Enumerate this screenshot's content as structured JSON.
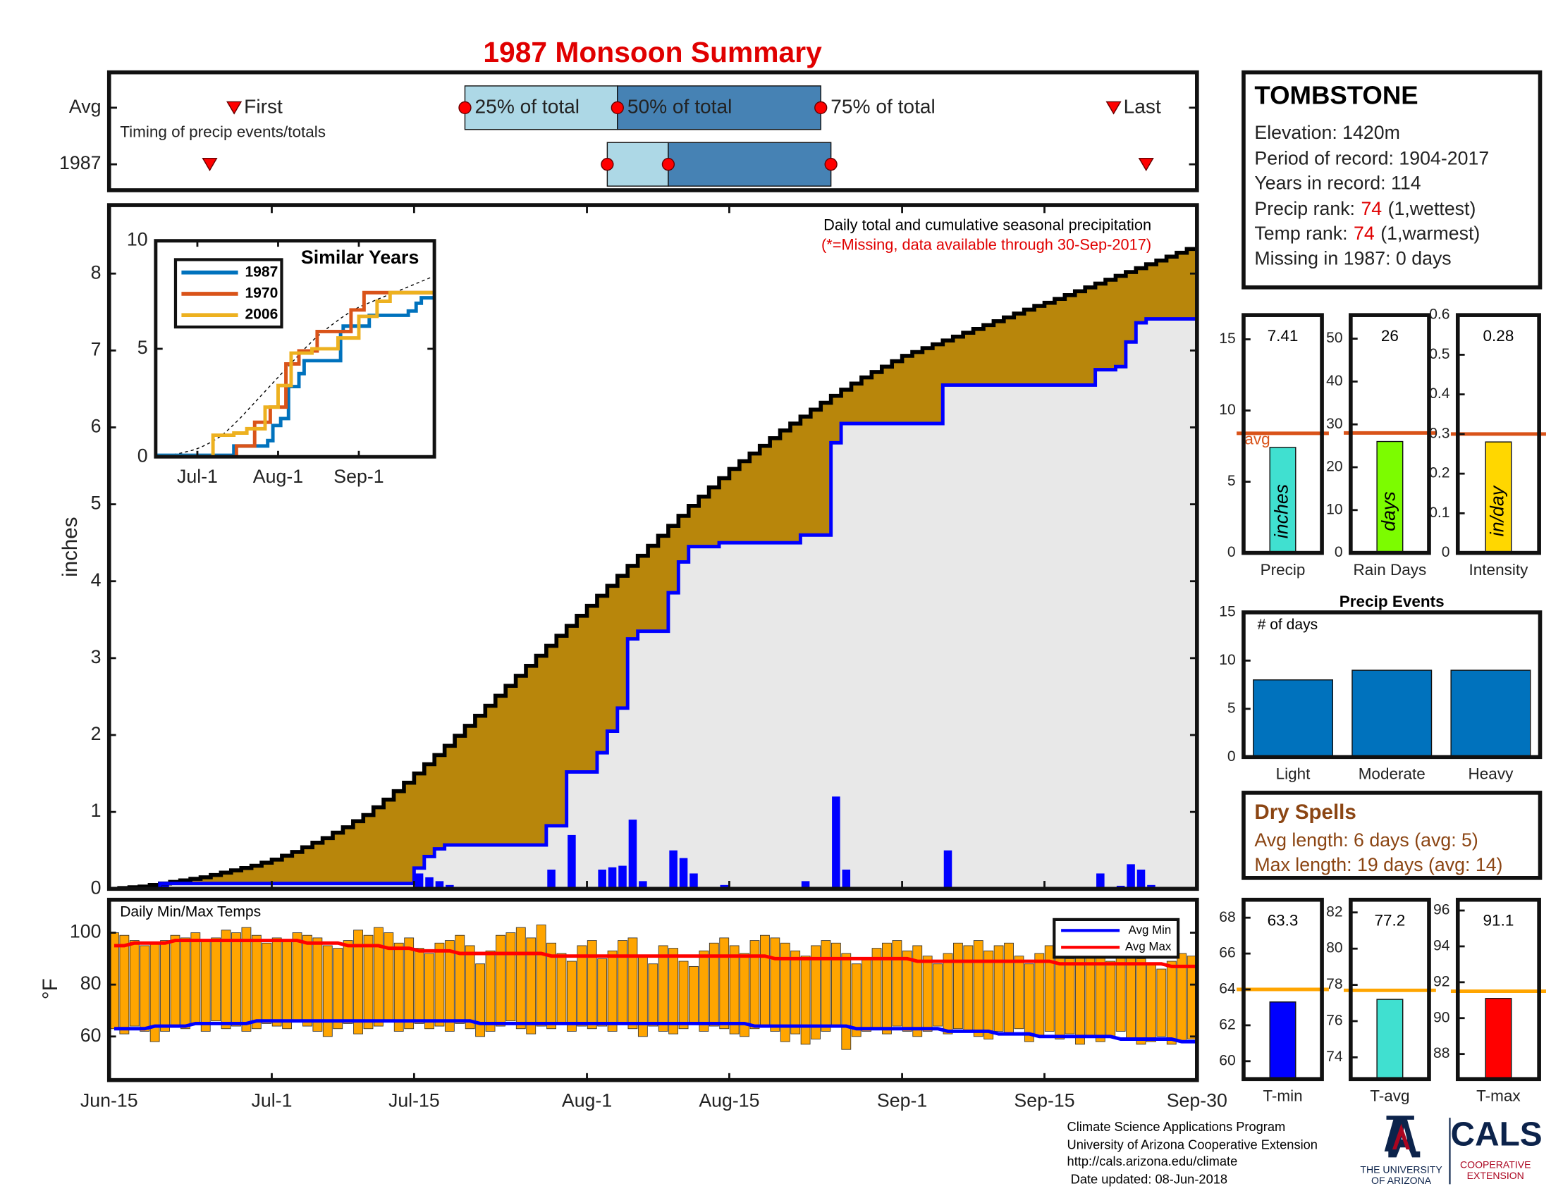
{
  "title": "1987 Monsoon Summary",
  "station": {
    "name": "TOMBSTONE",
    "elevation": "Elevation: 1420m",
    "period": "Period of record: 1904-2017",
    "years": "Years in record: 114",
    "precip_rank": {
      "label": "Precip rank:",
      "value": "74",
      "note": "(1,wettest)"
    },
    "temp_rank": {
      "label": "Temp rank:",
      "value": "74",
      "note": "(1,warmest)"
    },
    "missing": "Missing in 1987: 0 days"
  },
  "dry_spells": {
    "title": "Dry Spells",
    "avg": "Avg length: 6 days (avg: 5)",
    "max": "Max length: 19 days (avg: 14)"
  },
  "footer": {
    "lines": [
      "Climate Science Applications Program",
      "University of Arizona Cooperative Extension",
      "http://cals.arizona.edu/climate",
      " Date updated: 08-Jun-2018"
    ],
    "university": [
      "THE UNIVERSITY",
      "OF ARIZONA"
    ],
    "cals": "CALS",
    "cals_sub": [
      "COOPERATIVE",
      "EXTENSION"
    ]
  },
  "chart_data": [
    {
      "type": "timing",
      "rows": [
        "Avg",
        "1987"
      ],
      "xlim": [
        0,
        107
      ],
      "first": [
        12.3,
        9.9
      ],
      "p25": [
        35,
        49
      ],
      "p50": [
        50,
        55
      ],
      "p75": [
        70,
        71
      ],
      "last": [
        98.8,
        102
      ],
      "labels": {
        "first": "First",
        "p25": "25% of total",
        "p50": "50% of total",
        "p75": "75% of total",
        "last": "Last"
      },
      "note": "Timing of precip events/totals",
      "colors": {
        "lower": "#add8e6",
        "upper": "#4682b4",
        "marker": "#ff0000"
      }
    },
    {
      "type": "precip",
      "title": "Daily total and cumulative seasonal precipitation",
      "subtitle": "(*=Missing, data available through 30-Sep-2017)",
      "ylabel": "inches",
      "x": [
        0,
        1,
        2,
        3,
        4,
        5,
        6,
        7,
        8,
        9,
        10,
        11,
        12,
        13,
        14,
        15,
        16,
        17,
        18,
        19,
        20,
        21,
        22,
        23,
        24,
        25,
        26,
        27,
        28,
        29,
        30,
        31,
        32,
        33,
        34,
        35,
        36,
        37,
        38,
        39,
        40,
        41,
        42,
        43,
        44,
        45,
        46,
        47,
        48,
        49,
        50,
        51,
        52,
        53,
        54,
        55,
        56,
        57,
        58,
        59,
        60,
        61,
        62,
        63,
        64,
        65,
        66,
        67,
        68,
        69,
        70,
        71,
        72,
        73,
        74,
        75,
        76,
        77,
        78,
        79,
        80,
        81,
        82,
        83,
        84,
        85,
        86,
        87,
        88,
        89,
        90,
        91,
        92,
        93,
        94,
        95,
        96,
        97,
        98,
        99,
        100,
        101,
        102,
        103,
        104,
        105,
        106,
        107
      ],
      "xlim": [
        0,
        107
      ],
      "ylim": [
        0,
        8.89
      ],
      "yticks": [
        0,
        1,
        2,
        3,
        4,
        5,
        6,
        7,
        8
      ],
      "avg_cumulative": [
        0,
        0.01,
        0.02,
        0.03,
        0.05,
        0.07,
        0.09,
        0.11,
        0.13,
        0.15,
        0.18,
        0.21,
        0.24,
        0.27,
        0.3,
        0.34,
        0.38,
        0.43,
        0.48,
        0.54,
        0.6,
        0.66,
        0.73,
        0.8,
        0.88,
        0.96,
        1.06,
        1.16,
        1.27,
        1.38,
        1.5,
        1.62,
        1.74,
        1.86,
        1.99,
        2.12,
        2.25,
        2.38,
        2.51,
        2.64,
        2.77,
        2.9,
        3.03,
        3.16,
        3.29,
        3.42,
        3.55,
        3.68,
        3.81,
        3.94,
        4.07,
        4.2,
        4.33,
        4.46,
        4.59,
        4.72,
        4.85,
        4.98,
        5.1,
        5.22,
        5.34,
        5.46,
        5.56,
        5.66,
        5.76,
        5.86,
        5.96,
        6.05,
        6.14,
        6.23,
        6.32,
        6.41,
        6.49,
        6.57,
        6.65,
        6.72,
        6.79,
        6.86,
        6.93,
        6.98,
        7.03,
        7.08,
        7.13,
        7.18,
        7.23,
        7.28,
        7.33,
        7.38,
        7.43,
        7.48,
        7.53,
        7.58,
        7.62,
        7.67,
        7.72,
        7.77,
        7.82,
        7.87,
        7.92,
        7.97,
        8.02,
        8.07,
        8.12,
        8.17,
        8.22,
        8.27,
        8.32,
        8.37
      ],
      "daily": [
        0,
        0,
        0,
        0,
        0,
        0.07,
        0,
        0,
        0,
        0,
        0,
        0,
        0,
        0,
        0,
        0,
        0,
        0,
        0,
        0,
        0,
        0,
        0,
        0,
        0,
        0,
        0,
        0,
        0,
        0,
        0.2,
        0.15,
        0.1,
        0.05,
        0,
        0,
        0,
        0,
        0,
        0,
        0,
        0,
        0,
        0.25,
        0,
        0.7,
        0,
        0,
        0.25,
        0.28,
        0.3,
        0.9,
        0.1,
        0,
        0,
        0.5,
        0.4,
        0.2,
        0,
        0,
        0.05,
        0,
        0,
        0,
        0,
        0,
        0,
        0,
        0.1,
        0,
        0,
        1.2,
        0.25,
        0,
        0,
        0,
        0,
        0,
        0,
        0,
        0,
        0,
        0.5,
        0,
        0,
        0,
        0,
        0,
        0,
        0,
        0,
        0,
        0,
        0,
        0,
        0,
        0,
        0.2,
        0,
        0.04,
        0.32,
        0.25,
        0.05,
        0,
        0,
        0,
        0,
        0
      ],
      "avg_color": "#000000",
      "avg_fill": "#b8860b",
      "year_color": "#0000ff",
      "year_fill": "#e8e8e8"
    },
    {
      "type": "line",
      "title": "Similar Years",
      "xlim": [
        0,
        107
      ],
      "ylim": [
        0,
        10
      ],
      "yticks": [
        0,
        5,
        10
      ],
      "xticks": [
        {
          "value": 16,
          "label": "Jul-1"
        },
        {
          "value": 47,
          "label": "Aug-1"
        },
        {
          "value": 78,
          "label": "Sep-1"
        }
      ],
      "series": [
        {
          "name": "1987",
          "color": "#0072bd",
          "x": [
            0,
            30,
            43,
            45,
            48,
            51,
            55,
            57,
            71,
            72,
            82,
            97,
            100,
            102,
            107
          ],
          "values": [
            0.07,
            0.5,
            0.75,
            1.45,
            1.77,
            3.25,
            3.85,
            4.45,
            5.8,
            6.05,
            6.55,
            6.75,
            7.11,
            7.36,
            7.41
          ]
        },
        {
          "name": "1970",
          "color": "#d95319",
          "x": [
            0,
            25,
            31,
            38,
            44,
            50,
            55,
            62,
            70,
            75,
            80,
            88,
            107
          ],
          "values": [
            0,
            0,
            0.5,
            1.6,
            2.3,
            4.3,
            4.9,
            5.8,
            5.8,
            6.8,
            7.6,
            7.6,
            7.6
          ]
        },
        {
          "name": "2006",
          "color": "#edb120",
          "x": [
            0,
            20,
            22,
            30,
            35,
            42,
            47,
            52,
            60,
            70,
            78,
            85,
            90,
            107
          ],
          "values": [
            0,
            0,
            1,
            1.1,
            1.3,
            2.3,
            3.3,
            4.8,
            5.0,
            5.5,
            6.5,
            7.2,
            7.6,
            7.6
          ]
        }
      ],
      "legend": "upper left"
    },
    {
      "type": "range",
      "title": "Daily Min/Max Temps",
      "ylabel": "°F",
      "ylim": [
        43.2,
        112.7
      ],
      "yticks": [
        60,
        80,
        100
      ],
      "xlim": [
        0,
        107
      ],
      "xticks": [
        {
          "value": 0,
          "label": "Jun-15"
        },
        {
          "value": 16,
          "label": "Jul-1"
        },
        {
          "value": 30,
          "label": "Jul-15"
        },
        {
          "value": 47,
          "label": "Aug-1"
        },
        {
          "value": 61,
          "label": "Aug-15"
        },
        {
          "value": 78,
          "label": "Sep-1"
        },
        {
          "value": 92,
          "label": "Sep-15"
        },
        {
          "value": 107,
          "label": "Sep-30"
        }
      ],
      "max": [
        100,
        99,
        97,
        95,
        96,
        97,
        99,
        98,
        100,
        97,
        98,
        101,
        100,
        102,
        99,
        96,
        98,
        97,
        100,
        99,
        98,
        95,
        94,
        97,
        101,
        99,
        102,
        100,
        96,
        98,
        94,
        92,
        96,
        97,
        99,
        95,
        88,
        93,
        99,
        100,
        102,
        98,
        103,
        96,
        92,
        89,
        95,
        97,
        90,
        93,
        97,
        98,
        91,
        88,
        95,
        94,
        89,
        87,
        93,
        96,
        98,
        95,
        92,
        97,
        99,
        98,
        96,
        93,
        91,
        95,
        97,
        96,
        92,
        88,
        90,
        94,
        96,
        97,
        93,
        95,
        91,
        88,
        92,
        96,
        95,
        97,
        93,
        95,
        96,
        91,
        88,
        92,
        95,
        94,
        90,
        93,
        96,
        92,
        89,
        91,
        93,
        90,
        88,
        86,
        89,
        92,
        91,
        88
      ],
      "min": [
        63,
        61,
        64,
        62,
        58,
        62,
        64,
        63,
        65,
        62,
        66,
        63,
        64,
        62,
        63,
        65,
        64,
        63,
        66,
        64,
        62,
        60,
        63,
        65,
        61,
        63,
        64,
        66,
        62,
        63,
        65,
        63,
        64,
        62,
        65,
        63,
        60,
        62,
        64,
        66,
        63,
        61,
        64,
        63,
        65,
        62,
        64,
        63,
        64,
        62,
        65,
        63,
        60,
        64,
        62,
        61,
        63,
        65,
        62,
        64,
        63,
        61,
        60,
        63,
        64,
        62,
        58,
        61,
        57,
        59,
        62,
        64,
        55,
        60,
        62,
        63,
        61,
        64,
        62,
        60,
        62,
        64,
        61,
        63,
        62,
        60,
        59,
        62,
        61,
        63,
        58,
        60,
        62,
        59,
        61,
        57,
        60,
        58,
        60,
        62,
        59,
        57,
        58,
        60,
        57,
        58,
        59,
        57
      ],
      "bar_color": "#ffa500",
      "series": [
        {
          "name": "Avg Min",
          "color": "#0000ff",
          "values": [
            63,
            63,
            63,
            63,
            64,
            64,
            64,
            64,
            65,
            65,
            65,
            65,
            65,
            65,
            66,
            66,
            66,
            66,
            66,
            66,
            66,
            66,
            66,
            66,
            66,
            66,
            66,
            66,
            66,
            66,
            66,
            66,
            66,
            66,
            66,
            66,
            65,
            65,
            65,
            65,
            65,
            65,
            65,
            65,
            65,
            65,
            65,
            65,
            65,
            65,
            65,
            65,
            65,
            65,
            65,
            65,
            65,
            65,
            65,
            65,
            65,
            65,
            65,
            64,
            64,
            64,
            64,
            64,
            64,
            64,
            64,
            64,
            64,
            63,
            63,
            63,
            63,
            63,
            63,
            63,
            63,
            63,
            62,
            62,
            62,
            62,
            62,
            61,
            61,
            61,
            61,
            60,
            60,
            60,
            60,
            60,
            60,
            60,
            60,
            59,
            59,
            59,
            59,
            59,
            59,
            58,
            58,
            58
          ]
        },
        {
          "name": "Avg Max",
          "color": "#ff0000",
          "values": [
            95,
            95,
            96,
            96,
            96,
            96,
            97,
            97,
            97,
            97,
            97,
            97,
            97,
            97,
            97,
            97,
            97,
            97,
            97,
            96,
            96,
            96,
            96,
            95,
            95,
            95,
            95,
            94,
            94,
            94,
            93,
            93,
            93,
            93,
            92,
            92,
            92,
            92,
            92,
            92,
            92,
            92,
            92,
            91,
            91,
            91,
            91,
            91,
            91,
            91,
            91,
            91,
            91,
            91,
            91,
            91,
            91,
            91,
            91,
            91,
            91,
            91,
            91,
            91,
            91,
            90,
            90,
            90,
            90,
            90,
            90,
            90,
            90,
            90,
            90,
            90,
            90,
            90,
            90,
            89,
            89,
            89,
            89,
            89,
            89,
            89,
            89,
            89,
            89,
            89,
            89,
            89,
            89,
            88,
            88,
            88,
            88,
            88,
            88,
            88,
            88,
            88,
            88,
            88,
            87,
            87,
            87,
            87
          ]
        }
      ],
      "legend": "upper right"
    },
    {
      "type": "bar",
      "categories": [
        "Precip"
      ],
      "values": [
        7.41
      ],
      "color": "#40e0d0",
      "unit": "inches",
      "avg": 8.4,
      "avg_label": "avg",
      "avg_color": "#d95319",
      "ylim": [
        0,
        16.7
      ],
      "yticks": [
        0,
        5,
        10,
        15
      ]
    },
    {
      "type": "bar",
      "categories": [
        "Rain Days"
      ],
      "values": [
        26
      ],
      "color": "#7cfc00",
      "unit": "days",
      "avg": 28,
      "avg_color": "#d95319",
      "ylim": [
        0,
        55.5
      ],
      "yticks": [
        0,
        10,
        20,
        30,
        40,
        50
      ]
    },
    {
      "type": "bar",
      "categories": [
        "Intensity"
      ],
      "values": [
        0.28
      ],
      "color": "#ffd700",
      "unit": "in/day",
      "avg": 0.3,
      "avg_color": "#d95319",
      "ylim": [
        0,
        0.6
      ],
      "yticks": [
        0,
        0.1,
        0.2,
        0.3,
        0.4,
        0.5,
        0.6
      ]
    },
    {
      "type": "bar",
      "title": "Precip Events",
      "note": "# of days",
      "categories": [
        "Light",
        "Moderate",
        "Heavy"
      ],
      "values": [
        8,
        9,
        9
      ],
      "color": "#0072bd",
      "ylim": [
        0,
        15
      ],
      "yticks": [
        0,
        5,
        10,
        15
      ]
    },
    {
      "type": "bar",
      "categories": [
        "T-min"
      ],
      "values": [
        63.3
      ],
      "color": "#0000ff",
      "avg": 64,
      "avg_color": "#ffa500",
      "ylim": [
        59,
        69
      ],
      "yticks": [
        60,
        62,
        64,
        66,
        68
      ]
    },
    {
      "type": "bar",
      "categories": [
        "T-avg"
      ],
      "values": [
        77.2
      ],
      "color": "#40e0d0",
      "avg": 77.7,
      "avg_color": "#ffa500",
      "ylim": [
        72.8,
        82.7
      ],
      "yticks": [
        74,
        76,
        78,
        80,
        82
      ]
    },
    {
      "type": "bar",
      "categories": [
        "T-max"
      ],
      "values": [
        91.1
      ],
      "color": "#ff0000",
      "avg": 91.5,
      "avg_color": "#ffa500",
      "ylim": [
        86.6,
        96.6
      ],
      "yticks": [
        88,
        90,
        92,
        94,
        96
      ]
    }
  ]
}
